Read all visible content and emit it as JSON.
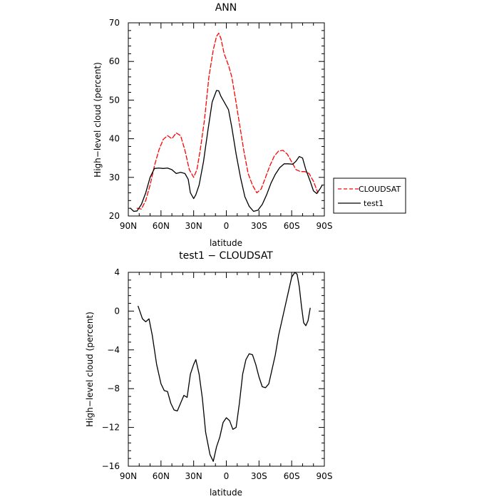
{
  "chart_data": [
    {
      "type": "line",
      "title": "ANN",
      "xlabel": "latitude",
      "ylabel": "High−level cloud (percent)",
      "xlim": [
        90,
        -90
      ],
      "ylim": [
        20,
        70
      ],
      "x_ticks": [
        {
          "value": 90,
          "label": "90N"
        },
        {
          "value": 60,
          "label": "60N"
        },
        {
          "value": 30,
          "label": "30N"
        },
        {
          "value": 0,
          "label": "0"
        },
        {
          "value": -30,
          "label": "30S"
        },
        {
          "value": -60,
          "label": "60S"
        },
        {
          "value": -90,
          "label": "90S"
        }
      ],
      "y_ticks": [
        {
          "value": 20,
          "label": "20"
        },
        {
          "value": 30,
          "label": "30"
        },
        {
          "value": 40,
          "label": "40"
        },
        {
          "value": 50,
          "label": "50"
        },
        {
          "value": 60,
          "label": "60"
        },
        {
          "value": 70,
          "label": "70"
        }
      ],
      "legend_position": "right",
      "series": [
        {
          "name": "CLOUDSAT",
          "color": "#ff0000",
          "dash": true,
          "points": [
            [
              82,
              22
            ],
            [
              78,
              21.8
            ],
            [
              74,
              24
            ],
            [
              70,
              28
            ],
            [
              66,
              33
            ],
            [
              62,
              37
            ],
            [
              58,
              39.8
            ],
            [
              54,
              40.8
            ],
            [
              50,
              40
            ],
            [
              46,
              41.5
            ],
            [
              42,
              40.8
            ],
            [
              38,
              37
            ],
            [
              34,
              32
            ],
            [
              30,
              30
            ],
            [
              27,
              32
            ],
            [
              24,
              37
            ],
            [
              20,
              45
            ],
            [
              16,
              56
            ],
            [
              12,
              63
            ],
            [
              9,
              66.5
            ],
            [
              7,
              67.3
            ],
            [
              5,
              66
            ],
            [
              2,
              62
            ],
            [
              -2,
              59
            ],
            [
              -5,
              56
            ],
            [
              -8,
              51
            ],
            [
              -12,
              44
            ],
            [
              -16,
              37
            ],
            [
              -20,
              31
            ],
            [
              -24,
              28
            ],
            [
              -28,
              26
            ],
            [
              -32,
              27
            ],
            [
              -36,
              30
            ],
            [
              -40,
              33
            ],
            [
              -44,
              35.5
            ],
            [
              -48,
              36.8
            ],
            [
              -52,
              37
            ],
            [
              -56,
              36
            ],
            [
              -60,
              34
            ],
            [
              -64,
              32
            ],
            [
              -68,
              31.5
            ],
            [
              -72,
              31.5
            ],
            [
              -76,
              31
            ],
            [
              -80,
              29
            ],
            [
              -84,
              26
            ]
          ]
        },
        {
          "name": "test1",
          "color": "#000000",
          "dash": false,
          "points": [
            [
              88,
              22
            ],
            [
              85,
              21.2
            ],
            [
              82,
              21.3
            ],
            [
              78,
              23
            ],
            [
              74,
              26
            ],
            [
              70,
              30
            ],
            [
              66,
              32.3
            ],
            [
              62,
              32.4
            ],
            [
              58,
              32.3
            ],
            [
              54,
              32.4
            ],
            [
              50,
              32
            ],
            [
              46,
              31
            ],
            [
              42,
              31.3
            ],
            [
              38,
              31
            ],
            [
              35,
              29.5
            ],
            [
              33,
              26
            ],
            [
              30,
              24.5
            ],
            [
              28,
              25.5
            ],
            [
              25,
              28
            ],
            [
              21,
              34
            ],
            [
              17,
              42
            ],
            [
              13,
              49.5
            ],
            [
              9,
              52.5
            ],
            [
              7,
              52.4
            ],
            [
              5,
              51
            ],
            [
              2,
              49.5
            ],
            [
              -2,
              47.5
            ],
            [
              -5,
              43
            ],
            [
              -9,
              36
            ],
            [
              -13,
              30
            ],
            [
              -17,
              25
            ],
            [
              -21,
              22.5
            ],
            [
              -25,
              21.2
            ],
            [
              -29,
              21.5
            ],
            [
              -33,
              23
            ],
            [
              -37,
              25.5
            ],
            [
              -41,
              28.5
            ],
            [
              -45,
              30.8
            ],
            [
              -49,
              32.5
            ],
            [
              -53,
              33.5
            ],
            [
              -57,
              33.5
            ],
            [
              -61,
              33.4
            ],
            [
              -64,
              34.2
            ],
            [
              -67,
              35.4
            ],
            [
              -70,
              35
            ],
            [
              -73,
              32
            ],
            [
              -77,
              29
            ],
            [
              -80,
              26.5
            ],
            [
              -83,
              25.8
            ],
            [
              -86,
              27
            ],
            [
              -88,
              28
            ]
          ]
        }
      ]
    },
    {
      "type": "line",
      "title": "test1 − CLOUDSAT",
      "xlabel": "latitude",
      "ylabel": "High−level cloud (percent)",
      "xlim": [
        90,
        -90
      ],
      "ylim": [
        -16,
        4
      ],
      "x_ticks": [
        {
          "value": 90,
          "label": "90N"
        },
        {
          "value": 60,
          "label": "60N"
        },
        {
          "value": 30,
          "label": "30N"
        },
        {
          "value": 0,
          "label": "0"
        },
        {
          "value": -30,
          "label": "30S"
        },
        {
          "value": -60,
          "label": "60S"
        },
        {
          "value": -90,
          "label": "90S"
        }
      ],
      "y_ticks": [
        {
          "value": 4,
          "label": "4"
        },
        {
          "value": 0,
          "label": "0"
        },
        {
          "value": -4,
          "label": "−4"
        },
        {
          "value": -8,
          "label": "−8"
        },
        {
          "value": -12,
          "label": "−12"
        },
        {
          "value": -16,
          "label": "−16"
        }
      ],
      "series": [
        {
          "color": "#000000",
          "dash": false,
          "points": [
            [
              81,
              0.5
            ],
            [
              77,
              -0.8
            ],
            [
              74,
              -1.1
            ],
            [
              71,
              -0.8
            ],
            [
              68,
              -2.5
            ],
            [
              64,
              -5.5
            ],
            [
              60,
              -7.5
            ],
            [
              57,
              -8.2
            ],
            [
              54,
              -8.3
            ],
            [
              51,
              -9.5
            ],
            [
              48,
              -10.2
            ],
            [
              45,
              -10.3
            ],
            [
              42,
              -9.5
            ],
            [
              39,
              -8.7
            ],
            [
              36,
              -8.9
            ],
            [
              33,
              -6.5
            ],
            [
              30,
              -5.5
            ],
            [
              28,
              -5
            ],
            [
              25,
              -6.5
            ],
            [
              22,
              -9
            ],
            [
              19,
              -12.5
            ],
            [
              15,
              -14.8
            ],
            [
              12,
              -15.5
            ],
            [
              9,
              -14
            ],
            [
              6,
              -13
            ],
            [
              3,
              -11.5
            ],
            [
              0,
              -11
            ],
            [
              -3,
              -11.3
            ],
            [
              -6,
              -12.2
            ],
            [
              -9,
              -12
            ],
            [
              -12,
              -9.5
            ],
            [
              -15,
              -6.5
            ],
            [
              -18,
              -5
            ],
            [
              -21,
              -4.4
            ],
            [
              -24,
              -4.5
            ],
            [
              -27,
              -5.5
            ],
            [
              -30,
              -6.8
            ],
            [
              -33,
              -7.8
            ],
            [
              -36,
              -7.9
            ],
            [
              -39,
              -7.5
            ],
            [
              -42,
              -6
            ],
            [
              -45,
              -4.5
            ],
            [
              -48,
              -2.5
            ],
            [
              -51,
              -1
            ],
            [
              -54,
              0.5
            ],
            [
              -57,
              2
            ],
            [
              -60,
              3.5
            ],
            [
              -63,
              4
            ],
            [
              -65,
              3.8
            ],
            [
              -67,
              2.5
            ],
            [
              -69,
              0.5
            ],
            [
              -71,
              -1.2
            ],
            [
              -73,
              -1.5
            ],
            [
              -75,
              -1
            ],
            [
              -77,
              0.3
            ]
          ]
        }
      ]
    }
  ],
  "legend": {
    "items": [
      {
        "label": "CLOUDSAT",
        "color": "#ff0000",
        "dash": true
      },
      {
        "label": "test1",
        "color": "#000000",
        "dash": false
      }
    ]
  }
}
